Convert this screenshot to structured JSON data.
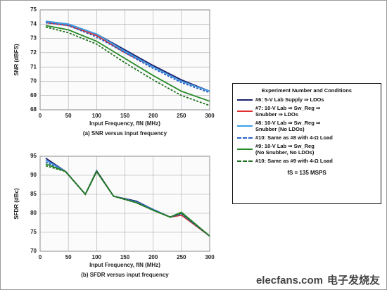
{
  "chart_data": [
    {
      "type": "line",
      "y_label": "SNR (dBFS)",
      "x_label": "Input Frequency, fIN (MHz)",
      "caption": "(a) SNR versus input frequency",
      "x": [
        10,
        50,
        100,
        150,
        200,
        250,
        300
      ],
      "xlim": [
        0,
        300
      ],
      "xticks": [
        0,
        50,
        100,
        150,
        200,
        250,
        300
      ],
      "ylim": [
        68,
        75
      ],
      "yticks": [
        68,
        69,
        70,
        71,
        72,
        73,
        74,
        75
      ],
      "grid": true,
      "series": [
        {
          "name": "#6: 5-V Lab Supply ⇒ LDOs",
          "color": "#1a1f6b",
          "dash": false,
          "values": [
            74.2,
            74.0,
            73.3,
            72.2,
            71.1,
            70.1,
            69.3
          ]
        },
        {
          "name": "#7: 10-V Lab ⇒ Sw_Reg ⇒\nSnubber ⇒ LDOs",
          "color": "#e03030",
          "dash": false,
          "values": [
            74.1,
            73.9,
            73.2,
            72.0,
            71.0,
            70.0,
            69.3
          ]
        },
        {
          "name": "#8: 10-V Lab ⇒ Sw_Reg ⇒\nSnubber (No LDOs)",
          "color": "#3aa0e8",
          "dash": false,
          "values": [
            74.2,
            74.0,
            73.3,
            72.1,
            71.0,
            70.0,
            69.3
          ]
        },
        {
          "name": "#10: Same as #8 with 4-Ω Load",
          "color": "#2b5fc9",
          "dash": true,
          "values": [
            74.1,
            73.9,
            73.1,
            72.0,
            70.9,
            69.9,
            69.2
          ]
        },
        {
          "name": "#9: 10-V Lab ⇒ Sw_Reg\n(No Snubber, No LDOs)",
          "color": "#2a8a2a",
          "dash": false,
          "values": [
            73.9,
            73.6,
            72.8,
            71.6,
            70.4,
            69.3,
            68.6
          ]
        },
        {
          "name": "#10: Same as #9 with 4-Ω Load",
          "color": "#1f6f1f",
          "dash": true,
          "values": [
            73.8,
            73.4,
            72.6,
            71.3,
            70.1,
            69.0,
            68.3
          ]
        }
      ]
    },
    {
      "type": "line",
      "y_label": "SFDR (dBc)",
      "x_label": "Input Frequency, fIN (MHz)",
      "caption": "(b) SFDR versus input frequency",
      "x": [
        10,
        45,
        80,
        100,
        130,
        170,
        200,
        230,
        250,
        300
      ],
      "xlim": [
        0,
        300
      ],
      "xticks": [
        0,
        50,
        100,
        150,
        200,
        250,
        300
      ],
      "ylim": [
        70,
        95
      ],
      "yticks": [
        70,
        75,
        80,
        85,
        90,
        95
      ],
      "grid": true,
      "series": [
        {
          "color": "#1a1f6b",
          "dash": false,
          "values": [
            94.5,
            91,
            85,
            91.2,
            84.5,
            83.2,
            81,
            79,
            80.2,
            74
          ]
        },
        {
          "color": "#e03030",
          "dash": false,
          "values": [
            94,
            91,
            85,
            91,
            84.5,
            83,
            81,
            79,
            79.5,
            74
          ]
        },
        {
          "color": "#3aa0e8",
          "dash": false,
          "values": [
            94,
            91,
            85,
            91,
            84.5,
            83,
            81,
            79,
            80,
            74
          ]
        },
        {
          "color": "#2b5fc9",
          "dash": true,
          "values": [
            93.5,
            91,
            85,
            91,
            84.5,
            83,
            81,
            79,
            79.8,
            74
          ]
        },
        {
          "color": "#2a8a2a",
          "dash": false,
          "values": [
            93,
            91,
            85,
            91,
            84.5,
            82.8,
            80.8,
            79,
            80.3,
            74
          ]
        },
        {
          "color": "#1f6f1f",
          "dash": true,
          "values": [
            92.5,
            91,
            85,
            91,
            84.5,
            82.8,
            80.8,
            79,
            80,
            74
          ]
        }
      ]
    }
  ],
  "legend": {
    "title": "Experiment Number and Conditions",
    "note": "fS = 135 MSPS"
  },
  "watermark": {
    "site": "elecfans.com",
    "brand": "电子发烧友"
  }
}
